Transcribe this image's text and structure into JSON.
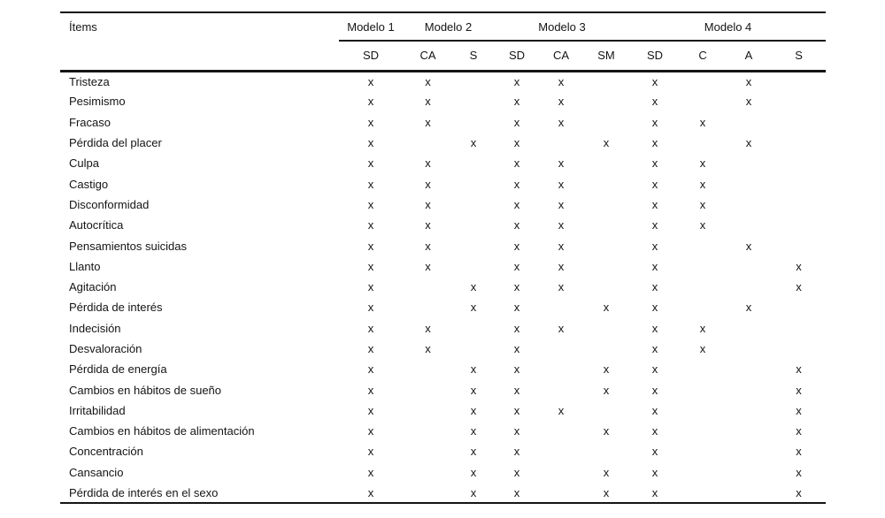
{
  "table": {
    "items_header": "Ítems",
    "mark_glyph": "x",
    "text_color": "#141414",
    "groups": [
      {
        "label": "Modelo 1",
        "span": 1
      },
      {
        "label": "Modelo 2",
        "span": 2
      },
      {
        "label": "Modelo 3",
        "span": 3
      },
      {
        "label": "Modelo 4",
        "span": 4
      }
    ],
    "columns": [
      "SD",
      "CA",
      "S",
      "SD",
      "CA",
      "SM",
      "SD",
      "C",
      "A",
      "S"
    ],
    "rows": [
      {
        "item": "Tristeza",
        "marks": [
          1,
          1,
          0,
          1,
          1,
          0,
          1,
          0,
          1,
          0
        ]
      },
      {
        "item": "Pesimismo",
        "marks": [
          1,
          1,
          0,
          1,
          1,
          0,
          1,
          0,
          1,
          0
        ]
      },
      {
        "item": "Fracaso",
        "marks": [
          1,
          1,
          0,
          1,
          1,
          0,
          1,
          1,
          0,
          0
        ]
      },
      {
        "item": "Pérdida del placer",
        "marks": [
          1,
          0,
          1,
          1,
          0,
          1,
          1,
          0,
          1,
          0
        ]
      },
      {
        "item": "Culpa",
        "marks": [
          1,
          1,
          0,
          1,
          1,
          0,
          1,
          1,
          0,
          0
        ]
      },
      {
        "item": "Castigo",
        "marks": [
          1,
          1,
          0,
          1,
          1,
          0,
          1,
          1,
          0,
          0
        ]
      },
      {
        "item": "Disconformidad",
        "marks": [
          1,
          1,
          0,
          1,
          1,
          0,
          1,
          1,
          0,
          0
        ]
      },
      {
        "item": "Autocrítica",
        "marks": [
          1,
          1,
          0,
          1,
          1,
          0,
          1,
          1,
          0,
          0
        ]
      },
      {
        "item": "Pensamientos suicidas",
        "marks": [
          1,
          1,
          0,
          1,
          1,
          0,
          1,
          0,
          1,
          0
        ]
      },
      {
        "item": "Llanto",
        "marks": [
          1,
          1,
          0,
          1,
          1,
          0,
          1,
          0,
          0,
          1
        ]
      },
      {
        "item": "Agitación",
        "marks": [
          1,
          0,
          1,
          1,
          1,
          0,
          1,
          0,
          0,
          1
        ]
      },
      {
        "item": "Pérdida de interés",
        "marks": [
          1,
          0,
          1,
          1,
          0,
          1,
          1,
          0,
          1,
          0
        ]
      },
      {
        "item": "Indecisión",
        "marks": [
          1,
          1,
          0,
          1,
          1,
          0,
          1,
          1,
          0,
          0
        ]
      },
      {
        "item": "Desvaloración",
        "marks": [
          1,
          1,
          0,
          1,
          0,
          0,
          1,
          1,
          0,
          0
        ]
      },
      {
        "item": "Pérdida de energía",
        "marks": [
          1,
          0,
          1,
          1,
          0,
          1,
          1,
          0,
          0,
          1
        ]
      },
      {
        "item": "Cambios en hábitos de sueño",
        "marks": [
          1,
          0,
          1,
          1,
          0,
          1,
          1,
          0,
          0,
          1
        ]
      },
      {
        "item": "Irritabilidad",
        "marks": [
          1,
          0,
          1,
          1,
          1,
          0,
          1,
          0,
          0,
          1
        ]
      },
      {
        "item": "Cambios en hábitos de alimentación",
        "marks": [
          1,
          0,
          1,
          1,
          0,
          1,
          1,
          0,
          0,
          1
        ]
      },
      {
        "item": "Concentración",
        "marks": [
          1,
          0,
          1,
          1,
          0,
          0,
          1,
          0,
          0,
          1
        ]
      },
      {
        "item": "Cansancio",
        "marks": [
          1,
          0,
          1,
          1,
          0,
          1,
          1,
          0,
          0,
          1
        ]
      },
      {
        "item": "Pérdida de interés en el sexo",
        "marks": [
          1,
          0,
          1,
          1,
          0,
          1,
          1,
          0,
          0,
          1
        ]
      }
    ]
  }
}
